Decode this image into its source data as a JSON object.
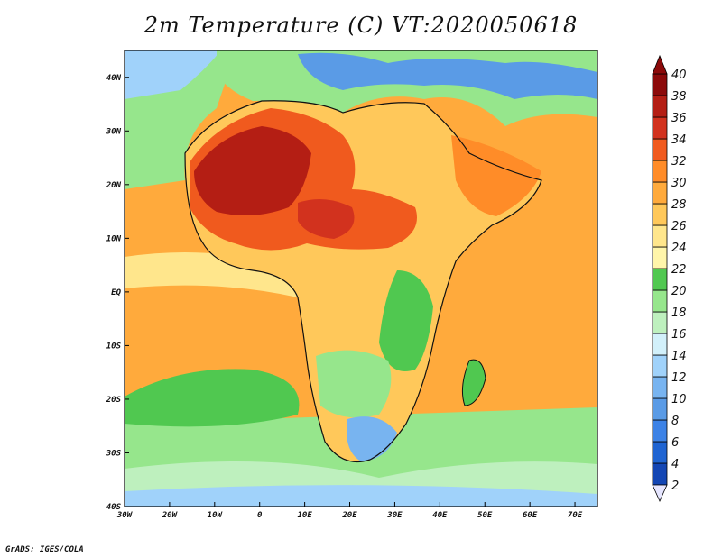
{
  "title": "2m Temperature (C) VT:2020050618",
  "credit": "GrADS: IGES/COLA",
  "map": {
    "variable": "2m Temperature",
    "units": "C",
    "valid_time": "2020050618",
    "lon_range": [
      -30,
      75
    ],
    "lat_range": [
      -40,
      45
    ],
    "lon_ticks": [
      {
        "value": -30,
        "label": "30W"
      },
      {
        "value": -20,
        "label": "20W"
      },
      {
        "value": -10,
        "label": "10W"
      },
      {
        "value": 0,
        "label": "0"
      },
      {
        "value": 10,
        "label": "10E"
      },
      {
        "value": 20,
        "label": "20E"
      },
      {
        "value": 30,
        "label": "30E"
      },
      {
        "value": 40,
        "label": "40E"
      },
      {
        "value": 50,
        "label": "50E"
      },
      {
        "value": 60,
        "label": "60E"
      },
      {
        "value": 70,
        "label": "70E"
      }
    ],
    "lat_ticks": [
      {
        "value": 40,
        "label": "40N"
      },
      {
        "value": 30,
        "label": "30N"
      },
      {
        "value": 20,
        "label": "20N"
      },
      {
        "value": 10,
        "label": "10N"
      },
      {
        "value": 0,
        "label": "EQ"
      },
      {
        "value": -10,
        "label": "10S"
      },
      {
        "value": -20,
        "label": "20S"
      },
      {
        "value": -30,
        "label": "30S"
      },
      {
        "value": -40,
        "label": "40S"
      }
    ]
  },
  "colorbar": {
    "levels": [
      "2",
      "4",
      "6",
      "8",
      "10",
      "12",
      "14",
      "16",
      "18",
      "20",
      "22",
      "24",
      "26",
      "28",
      "30",
      "32",
      "34",
      "36",
      "38",
      "40"
    ],
    "colors": [
      "#0c1a78",
      "#1346b4",
      "#1f64d2",
      "#3c82e6",
      "#5a9be6",
      "#78b4f0",
      "#a0d2fa",
      "#d2f0fa",
      "#bef0be",
      "#96e68c",
      "#50c850",
      "#fff5aa",
      "#ffe68c",
      "#ffc85a",
      "#ffaa3c",
      "#ff8c28",
      "#f05a1e",
      "#d2321e",
      "#b41e14",
      "#8c0a0a"
    ],
    "under_color": "#e6e6ff",
    "over_color": "#8c0a0a"
  }
}
